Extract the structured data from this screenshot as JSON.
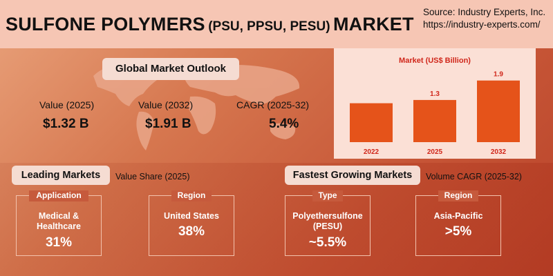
{
  "header": {
    "title_part1": "SULFONE POLYMERS",
    "title_part2": "(PSU, PPSU, PESU)",
    "title_part3": "MARKET",
    "source_line1": "Source: Industry Experts, Inc.",
    "source_line2": "https://industry-experts.com/"
  },
  "outlook": {
    "title": "Global Market Outlook",
    "metrics": [
      {
        "label": "Value (2025)",
        "value": "$1.32 B"
      },
      {
        "label": "Value (2032)",
        "value": "$1.91 B"
      },
      {
        "label": "CAGR (2025-32)",
        "value": "5.4%"
      }
    ]
  },
  "chart_data": {
    "type": "bar",
    "title": "Market  (US$ Billion)",
    "categories": [
      "2022",
      "2025",
      "2032"
    ],
    "values": [
      1.2,
      1.3,
      1.9
    ],
    "data_labels": [
      "",
      "1.3",
      "1.9"
    ],
    "ylim": [
      0,
      2.0
    ],
    "grid": false,
    "bar_color": "#e5531a"
  },
  "leading": {
    "title": "Leading Markets",
    "subtitle": "Value Share (2025)",
    "boxes": [
      {
        "head": "Application",
        "text": "Medical &\nHealthcare",
        "value": "31%"
      },
      {
        "head": "Region",
        "text": "United States",
        "value": "38%"
      }
    ]
  },
  "fastest": {
    "title": "Fastest Growing Markets",
    "subtitle": "Volume CAGR (2025-32)",
    "boxes": [
      {
        "head": "Type",
        "text": "Polyethersulfone\n(PESU)",
        "value": "~5.5%"
      },
      {
        "head": "Region",
        "text": "Asia-Pacific",
        "value": ">5%"
      }
    ]
  },
  "colors": {
    "header_bg": "#f6c6b4",
    "accent_bar": "#e5531a",
    "label_red": "#d0261a"
  }
}
